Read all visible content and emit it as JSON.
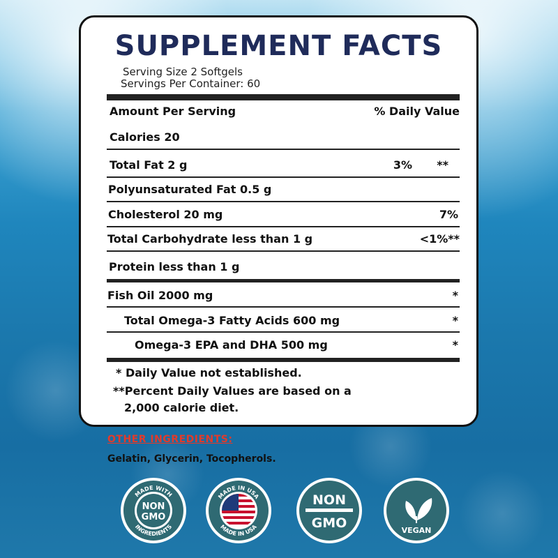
{
  "panel": {
    "title": "SUPPLEMENT FACTS",
    "serving_size": "Serving Size 2 Softgels",
    "servings_per_container": "Servings Per Container: 60",
    "header_left": "Amount Per Serving",
    "header_right": "% Daily Value",
    "calories": "Calories 20",
    "rows": [
      {
        "label": "Total Fat 2 g",
        "dv": "3%",
        "note": "**"
      },
      {
        "label": "Polyunsaturated Fat 0.5 g",
        "dv": "",
        "note": ""
      },
      {
        "label": "Cholesterol 20 mg",
        "dv": "7%",
        "note": ""
      },
      {
        "label": "Total Carbohydrate less than 1 g",
        "dv": "<1%**",
        "note": ""
      },
      {
        "label": "Protein less than 1 g",
        "dv": "",
        "note": ""
      },
      {
        "label": "Fish Oil 2000 mg",
        "dv": "*",
        "note": ""
      },
      {
        "label": "Total Omega-3 Fatty Acids 600 mg",
        "dv": "*",
        "note": ""
      },
      {
        "label": "Omega-3 EPA and DHA 500 mg",
        "dv": "*",
        "note": ""
      }
    ],
    "footnote_1": "* Daily Value not established.",
    "footnote_2a": "**Percent Daily Values are based on a",
    "footnote_2b": "2,000 calorie diet."
  },
  "other": {
    "heading": "OTHER INGREDIENTS:",
    "ingredients": "Gelatin, Glycerin, Tocopherols."
  },
  "badges": {
    "b1_top": "MADE WITH",
    "b1_center_1": "NON",
    "b1_center_2": "GMO",
    "b1_bottom": "INGREDIENTS",
    "b2_top": "MADE IN USA",
    "b2_bottom": "MADE IN USA",
    "b3_1": "NON",
    "b3_2": "GMO",
    "b4": "VEGAN"
  },
  "colors": {
    "title": "#1f2b5a",
    "badge_teal": "#2f6a73",
    "other_heading": "#e33a2a"
  }
}
